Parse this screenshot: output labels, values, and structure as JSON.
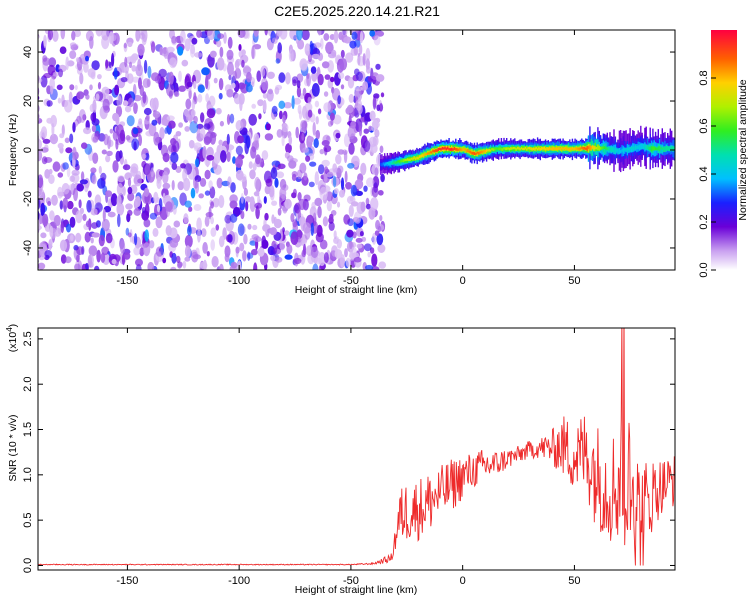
{
  "title": "C2E5.2025.220.14.21.R21",
  "colors": {
    "spectrogram_noise": "#8a2be2",
    "snr_line": "#ee2a2a",
    "ridge_core": "#ff2200",
    "background": "#ffffff"
  },
  "chart_data": [
    {
      "type": "heatmap",
      "xlabel": "Height of straight line (km)",
      "ylabel": "Frequency (Hz)",
      "xlim": [
        -190,
        95
      ],
      "ylim": [
        -49,
        49
      ],
      "xticks": [
        "-150",
        "-100",
        "-50",
        "0",
        "50"
      ],
      "xtick_values": [
        -150,
        -100,
        -50,
        0,
        50
      ],
      "yticks": [
        "-40",
        "-20",
        "0",
        "20",
        "40"
      ],
      "ytick_values": [
        -40,
        -20,
        0,
        20,
        40
      ],
      "noise_region": {
        "x_from": -190,
        "x_to": -37,
        "description_amplitude": [
          0.05,
          0.35
        ]
      },
      "ridge": {
        "x": [
          -37,
          -30,
          -25,
          -20,
          -15,
          -10,
          -5,
          0,
          5,
          10,
          15,
          20,
          30,
          40,
          50,
          55,
          60,
          65,
          70,
          75,
          80,
          85,
          90,
          95
        ],
        "y_hz": [
          -6,
          -5,
          -4,
          -3,
          -1,
          0.5,
          0.5,
          0.3,
          -1.5,
          -0.5,
          0.5,
          0.5,
          0.5,
          0.5,
          0.5,
          0.8,
          1.0,
          0.5,
          -0.5,
          0.5,
          1.5,
          0.5,
          0.5,
          0.5
        ],
        "amplitude": [
          0.3,
          0.55,
          0.7,
          0.75,
          0.85,
          0.95,
          0.95,
          0.8,
          0.9,
          0.8,
          0.6,
          0.7,
          0.75,
          0.8,
          0.8,
          0.9,
          0.7,
          0.5,
          0.4,
          0.45,
          0.4,
          0.6,
          0.5,
          0.5
        ]
      },
      "colorbar": {
        "label": "Normalized spectral amplitude",
        "ticks": [
          "0.0",
          "0.2",
          "0.4",
          "0.6",
          "0.8"
        ],
        "tick_values": [
          0,
          0.2,
          0.4,
          0.6,
          0.8
        ],
        "range": [
          0,
          1
        ]
      }
    },
    {
      "type": "line",
      "xlabel": "Height of straight line (km)",
      "ylabel": "SNR (10 * v/v)",
      "y_multiplier": "(x10^4)",
      "xlim": [
        -190,
        95
      ],
      "ylim": [
        -0.05,
        2.62
      ],
      "xticks": [
        "-150",
        "-100",
        "-50",
        "0",
        "50"
      ],
      "xtick_values": [
        -150,
        -100,
        -50,
        0,
        50
      ],
      "yticks": [
        "0.0",
        "0.5",
        "1.0",
        "1.5",
        "2.0",
        "2.5"
      ],
      "ytick_values": [
        0,
        0.5,
        1.0,
        1.5,
        2.0,
        2.5
      ],
      "series": [
        {
          "x": [
            -190,
            -150,
            -100,
            -50,
            -40,
            -32,
            -28,
            -25,
            -20,
            -15,
            -10,
            -5,
            0,
            5,
            10,
            15,
            20,
            25,
            30,
            35,
            40,
            45,
            50,
            55,
            60,
            65,
            70,
            72,
            75,
            80,
            85,
            90,
            95
          ],
          "y": [
            0.01,
            0.01,
            0.01,
            0.01,
            0.02,
            0.08,
            0.55,
            0.6,
            0.62,
            0.7,
            0.8,
            0.88,
            0.98,
            1.05,
            1.1,
            1.12,
            1.18,
            1.22,
            1.28,
            1.3,
            1.3,
            1.32,
            1.2,
            1.25,
            1.0,
            0.85,
            0.9,
            1.0,
            0.8,
            0.5,
            0.8,
            0.9,
            0.95
          ],
          "noise_amplitude": [
            0.005,
            0.005,
            0.005,
            0.005,
            0.01,
            0.05,
            0.3,
            0.35,
            0.35,
            0.35,
            0.3,
            0.3,
            0.25,
            0.2,
            0.2,
            0.15,
            0.12,
            0.1,
            0.1,
            0.12,
            0.2,
            0.35,
            0.4,
            0.5,
            0.6,
            0.6,
            0.7,
            0.9,
            0.8,
            0.7,
            0.4,
            0.3,
            0.3
          ]
        }
      ]
    }
  ]
}
